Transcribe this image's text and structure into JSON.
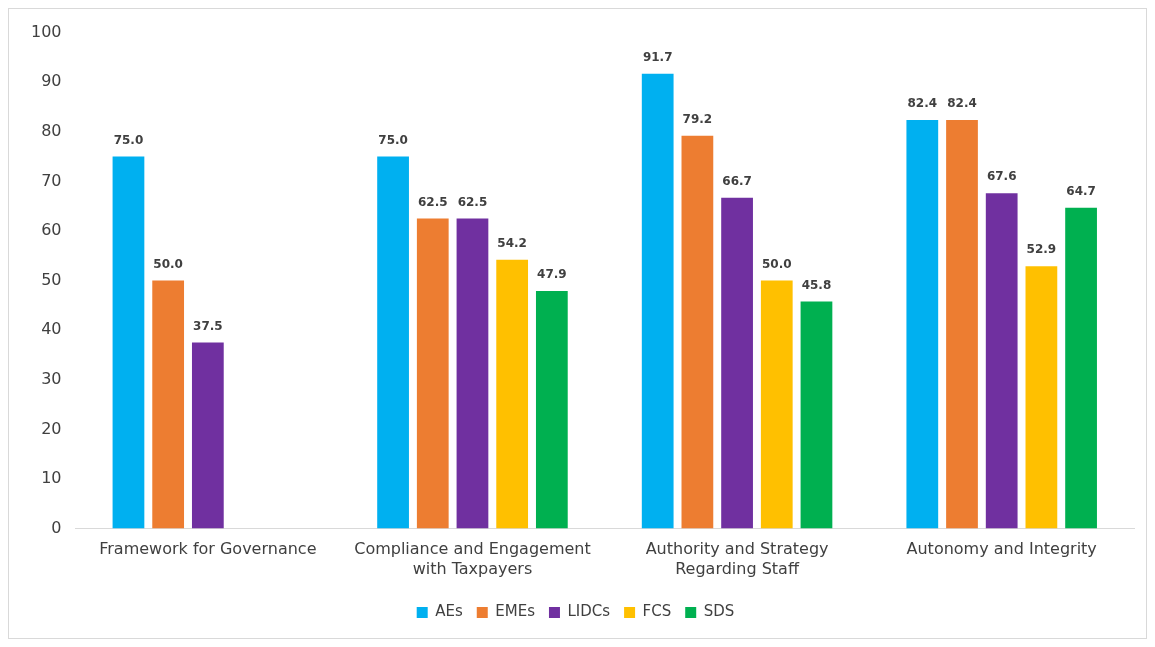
{
  "chart_data": {
    "type": "bar",
    "categories": [
      "Framework for Governance",
      "Compliance and Engagement with Taxpayers",
      "Authority and Strategy Regarding Staff",
      "Autonomy and Integrity"
    ],
    "series": [
      {
        "name": "AEs",
        "color": "#00b0f0",
        "values": [
          75.0,
          75.0,
          91.7,
          82.4
        ],
        "value_labels": [
          "75.0",
          "75.0",
          "91.7",
          "82.4"
        ]
      },
      {
        "name": "EMEs",
        "color": "#ed7d31",
        "values": [
          50.0,
          62.5,
          79.2,
          82.4
        ],
        "value_labels": [
          "50.0",
          "62.5",
          "79.2",
          "82.4"
        ]
      },
      {
        "name": "LIDCs",
        "color": "#7030a0",
        "values": [
          37.5,
          62.5,
          66.7,
          67.6
        ],
        "value_labels": [
          "37.5",
          "62.5",
          "66.7",
          "67.6"
        ]
      },
      {
        "name": "FCS",
        "color": "#ffc000",
        "values": [
          null,
          54.2,
          50.0,
          52.9
        ],
        "value_labels": [
          null,
          "54.2",
          "50.0",
          "52.9"
        ]
      },
      {
        "name": "SDS",
        "color": "#00b050",
        "values": [
          null,
          47.9,
          45.8,
          64.7
        ],
        "value_labels": [
          null,
          "47.9",
          "45.8",
          "64.7"
        ]
      }
    ],
    "ylim": [
      0,
      100
    ],
    "yticks": [
      0,
      10,
      20,
      30,
      40,
      50,
      60,
      70,
      80,
      90,
      100
    ],
    "grid": false,
    "legend": "bottom"
  }
}
